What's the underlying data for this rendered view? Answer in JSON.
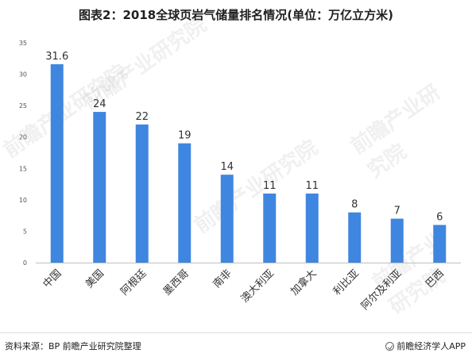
{
  "title": "图表2：2018全球页岩气储量排名情况(单位：万亿立方米)",
  "footer": {
    "source": "资料来源：BP 前瞻产业研究院整理",
    "brand": "前瞻经济学人APP"
  },
  "watermark": {
    "text": "前瞻产业研究院"
  },
  "colors": {
    "bar": "#3f86e0",
    "axis": "#bfbfbf"
  },
  "chart_data": {
    "type": "bar",
    "title": "图表2：2018全球页岩气储量排名情况(单位：万亿立方米)",
    "categories": [
      "中国",
      "美国",
      "阿根廷",
      "墨西哥",
      "南非",
      "澳大利亚",
      "加拿大",
      "利比亚",
      "阿尔及利亚",
      "巴西"
    ],
    "values": [
      31.6,
      24,
      22,
      19,
      14,
      11,
      11,
      8,
      7,
      6
    ],
    "data_labels": [
      "31.6",
      "24",
      "22",
      "19",
      "14",
      "11",
      "11",
      "8",
      "7",
      "6"
    ],
    "yticks": [
      0,
      5,
      10,
      15,
      20,
      25,
      30,
      35
    ],
    "ylim": [
      0,
      35
    ],
    "xlabel": "",
    "ylabel": "",
    "grid": false,
    "legend": "none"
  }
}
